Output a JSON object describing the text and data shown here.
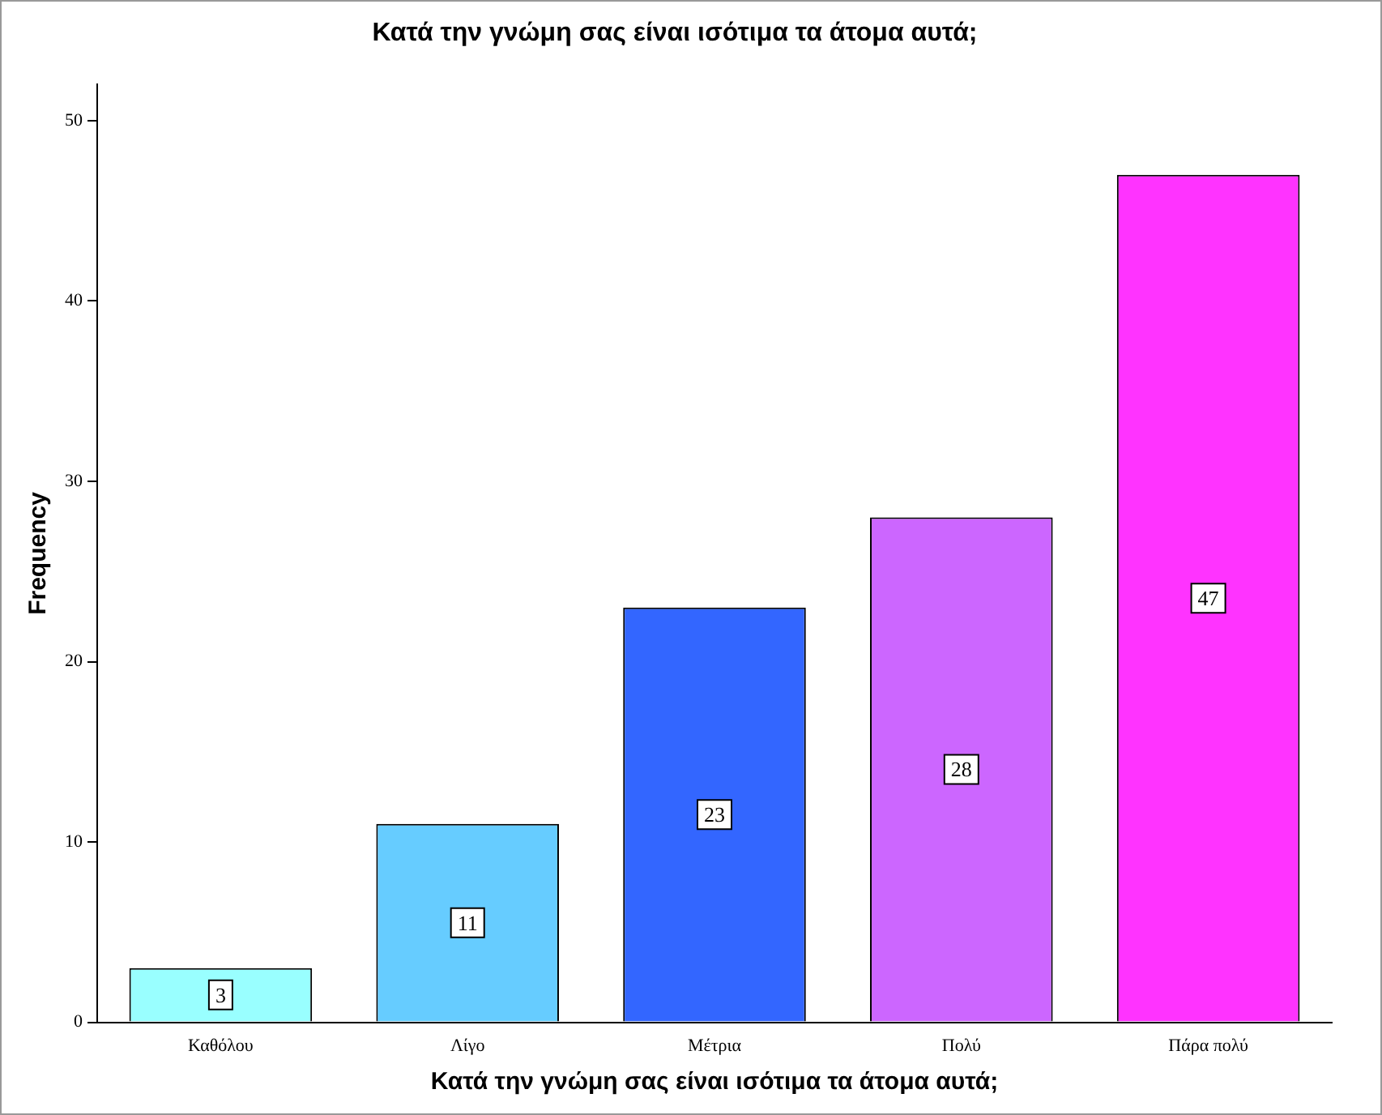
{
  "chart_data": {
    "type": "bar",
    "title": "Κατά την γνώμη σας είναι ισότιμα τα άτομα αυτά;",
    "xlabel": "Κατά την γνώμη σας είναι ισότιμα τα άτομα αυτά;",
    "ylabel": "Frequency",
    "categories": [
      "Καθόλου",
      "Λίγο",
      "Μέτρια",
      "Πολύ",
      "Πάρα πολύ"
    ],
    "values": [
      3,
      11,
      23,
      28,
      47
    ],
    "colors": [
      "#99ffff",
      "#66ccff",
      "#3366ff",
      "#cc66ff",
      "#ff33ff"
    ],
    "ylim": [
      0,
      52
    ],
    "yticks": [
      0,
      10,
      20,
      30,
      40,
      50
    ],
    "grid": false,
    "legend": false,
    "data_labels": true
  }
}
